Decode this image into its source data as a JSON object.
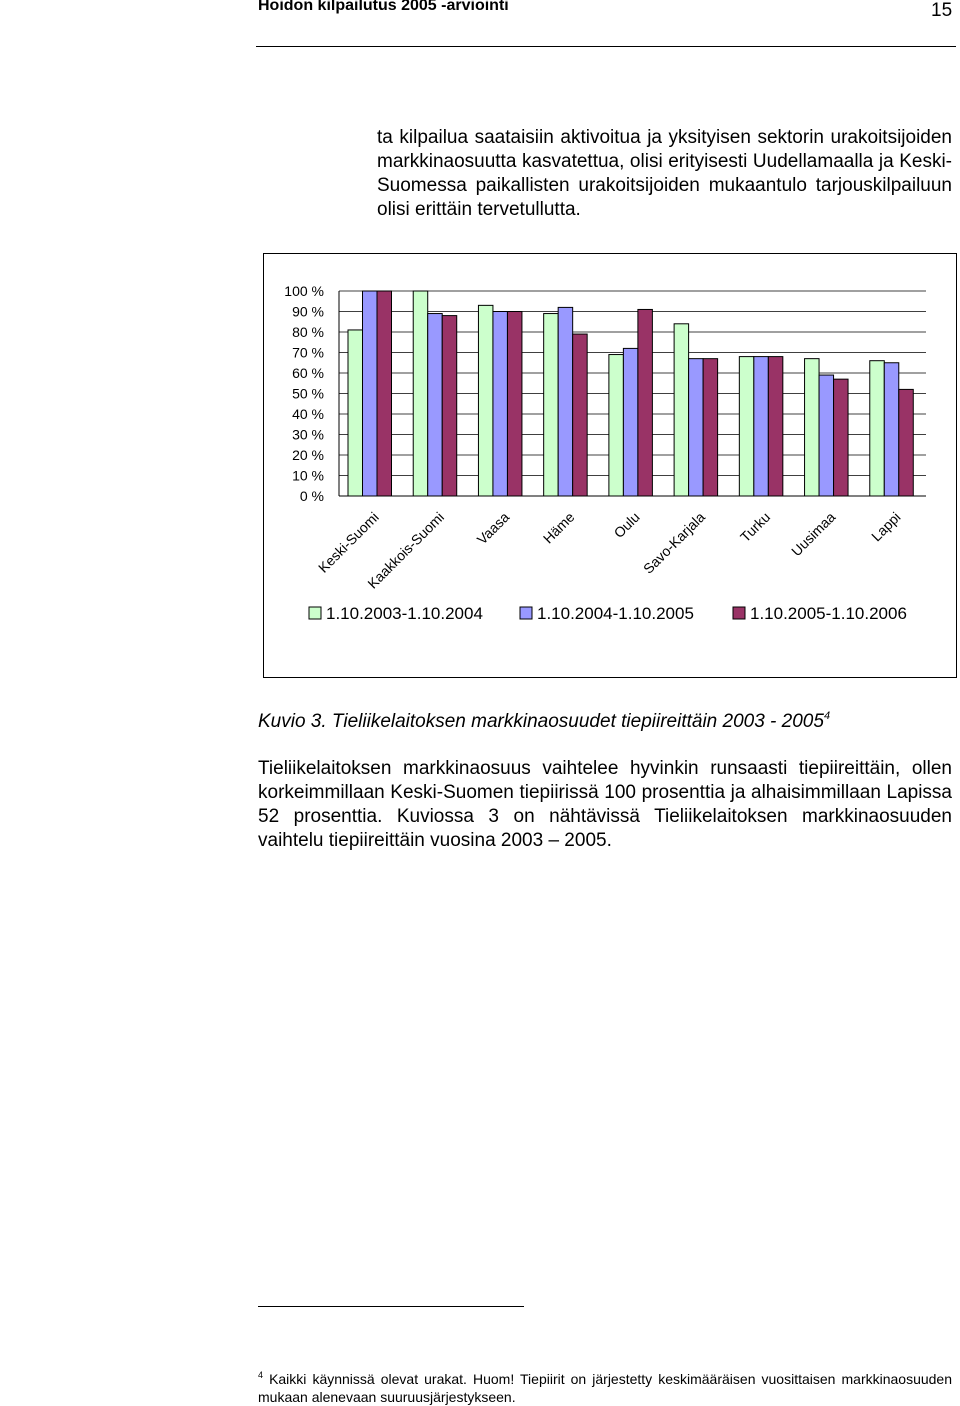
{
  "header": {
    "title": "Hoidon kilpailutus 2005  -arviointi",
    "page_number": "15"
  },
  "intro_text": "ta kilpailua saataisiin aktivoitua ja yksityisen sektorin urakoitsijoiden markkinaosuutta kasvatettua, olisi erityisesti Uudellamaalla ja Keski-Suomessa paikallisten urakoitsijoiden mukaantulo tarjouskilpailuun olisi erittäin tervetullutta.",
  "chart_data": {
    "type": "bar",
    "categories": [
      "Keski-Suomi",
      "Kaakkois-Suomi",
      "Vaasa",
      "Häme",
      "Oulu",
      "Savo-Karjala",
      "Turku",
      "Uusimaa",
      "Lappi"
    ],
    "series": [
      {
        "name": "1.10.2003-1.10.2004",
        "color": "#ccffcc",
        "values": [
          81,
          100,
          93,
          89,
          69,
          84,
          68,
          67,
          66
        ]
      },
      {
        "name": "1.10.2004-1.10.2005",
        "color": "#9999ff",
        "values": [
          100,
          89,
          90,
          92,
          72,
          67,
          68,
          59,
          65
        ]
      },
      {
        "name": "1.10.2005-1.10.2006",
        "color": "#993366",
        "values": [
          100,
          88,
          90,
          79,
          91,
          67,
          68,
          57,
          52
        ]
      }
    ],
    "yticks": [
      "100 %",
      "90 %",
      "80 %",
      "70 %",
      "60 %",
      "50 %",
      "40 %",
      "30 %",
      "20 %",
      "10 %",
      "0 %"
    ],
    "ylim": [
      0,
      100
    ],
    "grid": true,
    "legend_position": "bottom"
  },
  "caption": {
    "text": "Kuvio 3. Tieliikelaitoksen markkinaosuudet tiepiireittäin 2003 - 2005",
    "note_ref": "4"
  },
  "body_text": "Tieliikelaitoksen markkinaosuus vaihtelee hyvinkin runsaasti tiepiireittäin, ollen korkeimmillaan Keski-Suomen tiepiirissä 100 prosenttia ja alhaisimmillaan Lapissa 52 prosenttia. Kuviossa 3 on nähtävissä Tieliikelaitoksen markkinaosuuden vaihtelu tiepiireittäin vuosina 2003 – 2005.",
  "footnote": {
    "number": "4",
    "text": "Kaikki käynnissä olevat urakat. Huom! Tiepiirit on järjestetty keskimääräisen vuosittaisen markkinaosuuden mukaan alenevaan suuruusjärjestykseen."
  }
}
